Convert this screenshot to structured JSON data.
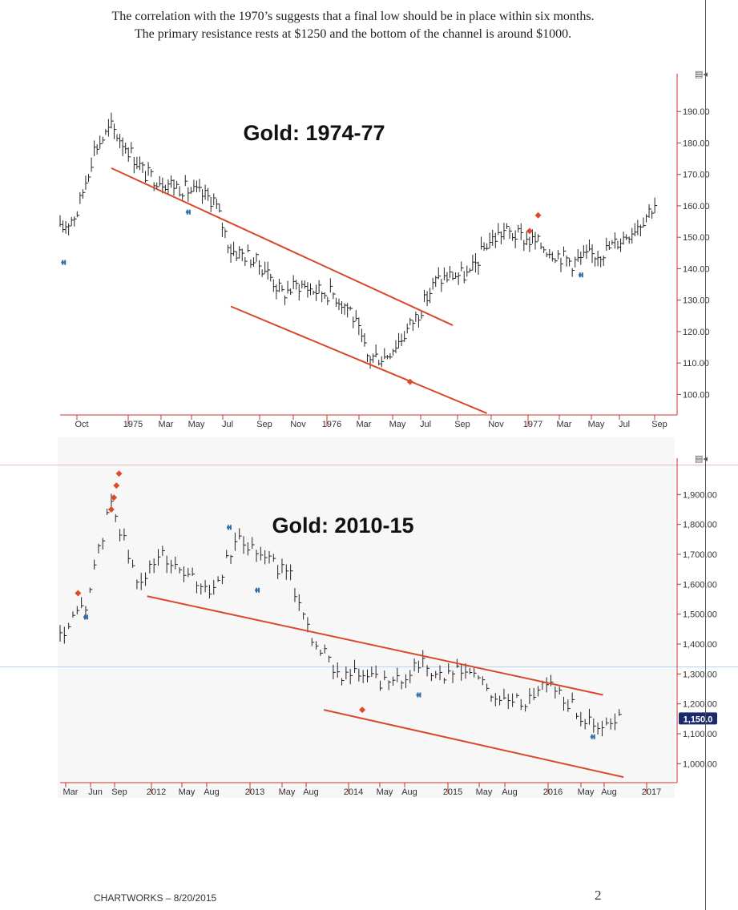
{
  "caption": {
    "line1": "The correlation with the 1970’s suggests that a final low should be in place within six months.",
    "line2": "The primary resistance rests at $1250 and the bottom of the channel is around $1000."
  },
  "footer": {
    "source": "CHARTWORKS – 8/20/2015",
    "page_number": "2"
  },
  "colors": {
    "price_bars": "#222222",
    "channel": "#d9482b",
    "sell_marker": "#e04a2a",
    "buy_marker": "#2b6aa8",
    "current_price_box": "#1a2a6a"
  },
  "chart_data": [
    {
      "type": "ohlc",
      "title": "Gold: 1974-77",
      "x_tick_labels": [
        "Oct",
        "1975",
        "Mar",
        "May",
        "Jul",
        "Sep",
        "Nov",
        "1976",
        "Mar",
        "May",
        "Jul",
        "Sep",
        "Nov",
        "1977",
        "Mar",
        "May",
        "Jul",
        "Sep"
      ],
      "y_tick_labels": [
        "100.00",
        "110.00",
        "120.00",
        "130.00",
        "140.00",
        "150.00",
        "160.00",
        "170.00",
        "180.00",
        "190.00"
      ],
      "ylim": [
        95,
        200
      ],
      "xlim": [
        0,
        36
      ],
      "series": [
        {
          "x": [
            0,
            1,
            2,
            3,
            4,
            5,
            6,
            7,
            8,
            9,
            10,
            11,
            12,
            13,
            14,
            15,
            16,
            17,
            18,
            19,
            20,
            21,
            22,
            23,
            24,
            25,
            26,
            27,
            28,
            29,
            30,
            31,
            32,
            33,
            34,
            35
          ],
          "close": [
            152,
            158,
            178,
            185,
            178,
            170,
            168,
            166,
            164,
            162,
            146,
            144,
            140,
            132,
            135,
            133,
            132,
            127,
            112,
            112,
            118,
            126,
            136,
            138,
            138,
            148,
            152,
            150,
            148,
            145,
            142,
            144,
            146,
            150,
            155,
            162
          ]
        }
      ],
      "channel": {
        "upper": {
          "x": [
            3,
            23
          ],
          "y": [
            172,
            122
          ]
        },
        "lower": {
          "x": [
            10,
            25
          ],
          "y": [
            128,
            94
          ]
        }
      },
      "sell_markers": [
        {
          "x": 20.5,
          "y": 104
        },
        {
          "x": 27.5,
          "y": 152
        },
        {
          "x": 28,
          "y": 157
        }
      ],
      "buy_markers": [
        {
          "x": 0.2,
          "y": 142
        },
        {
          "x": 7.5,
          "y": 158
        },
        {
          "x": 30.5,
          "y": 138
        }
      ]
    },
    {
      "type": "ohlc",
      "title": "Gold: 2010-15",
      "x_tick_labels": [
        "Mar",
        "Jun",
        "Sep",
        "2012",
        "May",
        "Aug",
        "2013",
        "May",
        "Aug",
        "2014",
        "May",
        "Aug",
        "2015",
        "May",
        "Aug",
        "2016",
        "May",
        "Aug",
        "2017"
      ],
      "y_tick_labels": [
        "1,000.00",
        "1,100.00",
        "1,200.00",
        "1,300.00",
        "1,400.00",
        "1,500.00",
        "1,600.00",
        "1,700.00",
        "1,800.00",
        "1,900.00"
      ],
      "ylim": [
        950,
        2000
      ],
      "xlim": [
        0,
        24
      ],
      "current_price_label": "1,150.0",
      "series": [
        {
          "x": [
            0,
            1,
            2,
            3,
            4,
            5,
            6,
            7,
            8,
            9,
            10,
            11,
            12,
            13,
            14,
            15,
            16,
            17,
            18,
            19,
            20,
            21,
            22
          ],
          "close": [
            1420,
            1530,
            1880,
            1600,
            1700,
            1620,
            1580,
            1760,
            1700,
            1620,
            1390,
            1300,
            1290,
            1260,
            1340,
            1290,
            1310,
            1220,
            1200,
            1280,
            1190,
            1110,
            1150
          ]
        }
      ],
      "channel": {
        "upper": {
          "x": [
            3.4,
            21.2
          ],
          "y": [
            1560,
            1230
          ]
        },
        "lower": {
          "x": [
            10.3,
            22
          ],
          "y": [
            1180,
            955
          ]
        }
      },
      "sell_markers": [
        {
          "x": 0.7,
          "y": 1570
        },
        {
          "x": 2.0,
          "y": 1850
        },
        {
          "x": 2.1,
          "y": 1890
        },
        {
          "x": 2.2,
          "y": 1930
        },
        {
          "x": 2.3,
          "y": 1970
        },
        {
          "x": 11.8,
          "y": 1180
        }
      ],
      "buy_markers": [
        {
          "x": 1.0,
          "y": 1490
        },
        {
          "x": 6.6,
          "y": 1790
        },
        {
          "x": 7.7,
          "y": 1580
        },
        {
          "x": 14.0,
          "y": 1230
        },
        {
          "x": 20.8,
          "y": 1090
        }
      ]
    }
  ]
}
